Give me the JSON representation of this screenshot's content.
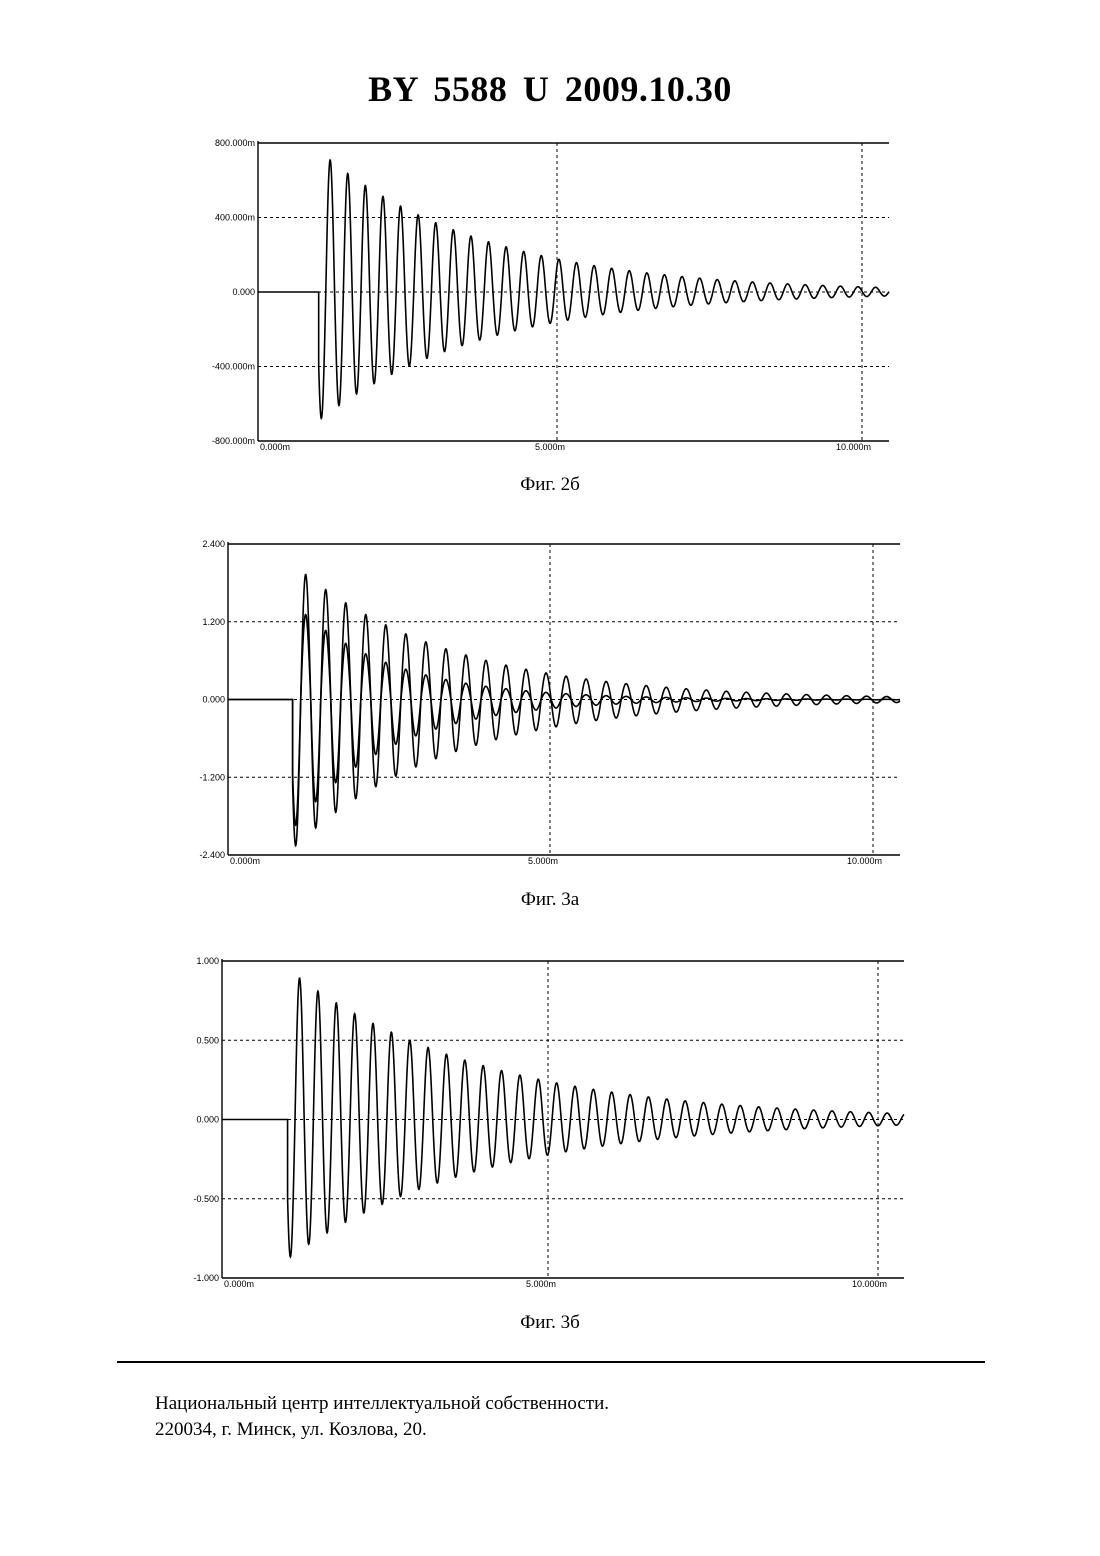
{
  "header": {
    "title": "BY  5588  U  2009.10.30"
  },
  "figures": [
    {
      "caption": "Фиг. 2б"
    },
    {
      "caption": "Фиг. 3а"
    },
    {
      "caption": "Фиг. 3б"
    }
  ],
  "footer": {
    "line1": "Национальный центр интеллектуальной собственности.",
    "line2": "220034, г. Минск, ул. Козлова, 20."
  },
  "chart_data": [
    {
      "type": "line",
      "title": "",
      "xlabel": "",
      "ylabel": "",
      "xlim": [
        0,
        10.4
      ],
      "ylim": [
        -0.8,
        0.8
      ],
      "x_ticks": [
        "0.000m",
        "5.000m",
        "10.000m"
      ],
      "y_ticks": [
        "800.000m",
        "400.000m",
        "0.000",
        "-400.000m",
        "-800.000m"
      ],
      "grid": true,
      "series": [
        {
          "description": "damped oscillation starting near 1.0m",
          "onset_x": 1.0,
          "peak": 0.76,
          "trough": -0.69,
          "period": 0.29,
          "decay_tau": 2.7
        }
      ]
    },
    {
      "type": "line",
      "title": "",
      "xlabel": "",
      "ylabel": "",
      "xlim": [
        0,
        10.4
      ],
      "ylim": [
        -2.4,
        2.4
      ],
      "x_ticks": [
        "0.000m",
        "5.000m",
        "10.000m"
      ],
      "y_ticks": [
        "2.400",
        "1.200",
        "0.000",
        "-1.200",
        "-2.400"
      ],
      "grid": true,
      "series": [
        {
          "description": "larger damped oscillation",
          "onset_x": 1.0,
          "peak": 2.1,
          "trough": -2.3,
          "period": 0.31,
          "decay_tau": 2.4
        },
        {
          "description": "smaller damped oscillation",
          "onset_x": 1.0,
          "peak": 1.5,
          "trough": -2.0,
          "period": 0.31,
          "decay_tau": 1.5
        }
      ]
    },
    {
      "type": "line",
      "title": "",
      "xlabel": "",
      "ylabel": "",
      "xlim": [
        0,
        10.4
      ],
      "ylim": [
        -1.0,
        1.0
      ],
      "x_ticks": [
        "0.000m",
        "5.000m",
        "10.000m"
      ],
      "y_ticks": [
        "1.000",
        "0.500",
        "0.000",
        "-0.500",
        "-1.000"
      ],
      "grid": true,
      "series": [
        {
          "description": "damped oscillation starting near 1.0m",
          "onset_x": 1.0,
          "peak": 0.95,
          "trough": -0.88,
          "period": 0.28,
          "decay_tau": 2.9
        }
      ]
    }
  ]
}
